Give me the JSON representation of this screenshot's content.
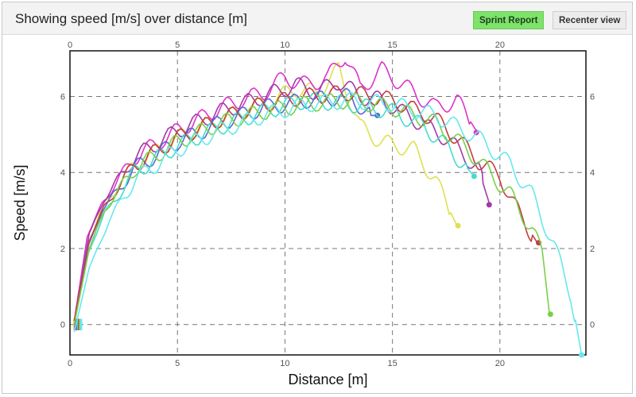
{
  "header": {
    "title": "Showing speed [m/s] over distance [m]",
    "sprint_report_label": "Sprint Report",
    "recenter_view_label": "Recenter view"
  },
  "colors": {
    "sprint_button_bg": "#7ee26b",
    "header_bg": "#f3f3f3"
  },
  "chart_data": {
    "type": "line",
    "title": "Showing speed [m/s] over distance [m]",
    "xlabel": "Distance [m]",
    "ylabel": "Speed [m/s]",
    "xlim": [
      0,
      24
    ],
    "ylim": [
      -0.8,
      7.2
    ],
    "x_ticks": [
      0,
      5,
      10,
      15,
      20
    ],
    "y_ticks": [
      0,
      2,
      4,
      6
    ],
    "grid": true,
    "legend": "none",
    "series": [
      {
        "color": "#e0e050",
        "points": [
          [
            0.2,
            0.0
          ],
          [
            0.8,
            2.0
          ],
          [
            1.5,
            3.1
          ],
          [
            3,
            4.2
          ],
          [
            5,
            4.9
          ],
          [
            7,
            5.4
          ],
          [
            9,
            5.8
          ],
          [
            10.5,
            6.2
          ],
          [
            11.5,
            6.1
          ],
          [
            12.5,
            6.7
          ],
          [
            13.5,
            5.2
          ],
          [
            14.5,
            4.8
          ],
          [
            16,
            4.6
          ],
          [
            17,
            3.8
          ],
          [
            18,
            2.6
          ]
        ],
        "end": [
          18.05,
          2.6
        ]
      },
      {
        "color": "#dd33cc",
        "points": [
          [
            0.2,
            0.1
          ],
          [
            0.8,
            2.3
          ],
          [
            1.5,
            3.2
          ],
          [
            3,
            4.4
          ],
          [
            5,
            5.1
          ],
          [
            7,
            5.7
          ],
          [
            9,
            6.1
          ],
          [
            10,
            6.5
          ],
          [
            11,
            6.3
          ],
          [
            12,
            6.5
          ],
          [
            12.8,
            7.1
          ],
          [
            13.5,
            6.2
          ],
          [
            14.5,
            6.7
          ],
          [
            16,
            6.1
          ],
          [
            17,
            5.7
          ],
          [
            18,
            5.9
          ],
          [
            18.9,
            5.1
          ]
        ],
        "end": [
          18.9,
          5.05
        ]
      },
      {
        "color": "#a23aa8",
        "points": [
          [
            0.2,
            0.1
          ],
          [
            0.9,
            2.4
          ],
          [
            1.6,
            3.3
          ],
          [
            3,
            4.4
          ],
          [
            5,
            5.1
          ],
          [
            7,
            5.6
          ],
          [
            9,
            6.0
          ],
          [
            10.5,
            6.3
          ],
          [
            11.5,
            6.1
          ],
          [
            12.5,
            6.4
          ],
          [
            13.5,
            6.0
          ],
          [
            14.5,
            5.9
          ],
          [
            16,
            5.4
          ],
          [
            17.5,
            4.9
          ],
          [
            19,
            4.1
          ],
          [
            19.5,
            3.2
          ]
        ],
        "end": [
          19.5,
          3.15
        ]
      },
      {
        "color": "#5a6ad0",
        "points": [
          [
            0.2,
            0.0
          ],
          [
            0.8,
            2.0
          ],
          [
            1.5,
            3.0
          ],
          [
            3,
            4.1
          ],
          [
            5,
            4.8
          ],
          [
            7,
            5.3
          ],
          [
            9,
            5.7
          ],
          [
            11,
            5.9
          ],
          [
            13,
            6.0
          ],
          [
            14,
            5.5
          ],
          [
            14.3,
            5.5
          ]
        ],
        "end": [
          14.3,
          5.5
        ]
      },
      {
        "color": "#44ddcc",
        "points": [
          [
            0.2,
            0.0
          ],
          [
            0.8,
            1.8
          ],
          [
            1.6,
            2.9
          ],
          [
            3,
            4.0
          ],
          [
            5,
            4.7
          ],
          [
            7,
            5.2
          ],
          [
            9,
            5.6
          ],
          [
            11,
            5.9
          ],
          [
            13,
            5.8
          ],
          [
            15,
            5.6
          ],
          [
            16.5,
            5.2
          ],
          [
            17.5,
            4.7
          ],
          [
            18.5,
            4.1
          ],
          [
            18.8,
            3.9
          ]
        ],
        "end": [
          18.8,
          3.9
        ]
      },
      {
        "color": "#c04040",
        "points": [
          [
            0.2,
            0.1
          ],
          [
            0.9,
            2.2
          ],
          [
            1.6,
            3.1
          ],
          [
            3,
            4.2
          ],
          [
            5,
            4.9
          ],
          [
            7,
            5.4
          ],
          [
            9,
            5.8
          ],
          [
            11,
            6.0
          ],
          [
            13,
            6.1
          ],
          [
            15,
            5.9
          ],
          [
            17,
            5.4
          ],
          [
            18,
            4.9
          ],
          [
            19,
            4.3
          ],
          [
            20,
            3.9
          ],
          [
            21,
            2.8
          ],
          [
            21.8,
            2.1
          ]
        ],
        "end": [
          21.8,
          2.15
        ]
      },
      {
        "color": "#7ad04a",
        "points": [
          [
            0.2,
            0.0
          ],
          [
            0.9,
            2.0
          ],
          [
            1.6,
            3.0
          ],
          [
            3,
            4.1
          ],
          [
            5,
            4.8
          ],
          [
            7,
            5.3
          ],
          [
            9,
            5.6
          ],
          [
            11,
            5.8
          ],
          [
            13,
            5.9
          ],
          [
            15,
            5.7
          ],
          [
            17,
            5.3
          ],
          [
            18.5,
            4.6
          ],
          [
            19.5,
            4.0
          ],
          [
            20.5,
            3.4
          ],
          [
            21.5,
            2.5
          ],
          [
            22,
            1.8
          ],
          [
            22.3,
            0.3
          ]
        ],
        "end": [
          22.35,
          0.27
        ]
      },
      {
        "color": "#66e8ee",
        "points": [
          [
            0.2,
            -0.2
          ],
          [
            0.9,
            1.5
          ],
          [
            1.8,
            2.7
          ],
          [
            3,
            3.8
          ],
          [
            5,
            4.6
          ],
          [
            7,
            5.1
          ],
          [
            9,
            5.5
          ],
          [
            11,
            5.8
          ],
          [
            13,
            5.9
          ],
          [
            15,
            5.8
          ],
          [
            17,
            5.5
          ],
          [
            19,
            4.9
          ],
          [
            20.5,
            4.2
          ],
          [
            21.5,
            3.4
          ],
          [
            22.5,
            2.1
          ],
          [
            23.3,
            0.8
          ],
          [
            23.8,
            -0.8
          ]
        ],
        "end": [
          23.8,
          -0.8
        ]
      }
    ]
  }
}
